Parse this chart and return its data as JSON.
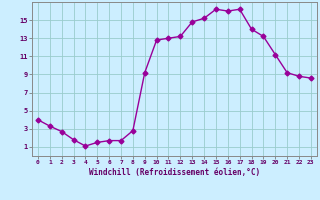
{
  "x": [
    0,
    1,
    2,
    3,
    4,
    5,
    6,
    7,
    8,
    9,
    10,
    11,
    12,
    13,
    14,
    15,
    16,
    17,
    18,
    19,
    20,
    21,
    22,
    23
  ],
  "y": [
    4.0,
    3.3,
    2.7,
    1.8,
    1.1,
    1.5,
    1.7,
    1.7,
    2.8,
    9.2,
    12.8,
    13.0,
    13.2,
    14.8,
    15.2,
    16.2,
    16.0,
    16.2,
    14.0,
    13.2,
    11.2,
    9.2,
    8.8,
    8.6
  ],
  "line_color": "#990099",
  "marker": "D",
  "markersize": 2.5,
  "linewidth": 1.0,
  "bg_color": "#cceeff",
  "grid_color": "#99cccc",
  "xlabel": "Windchill (Refroidissement éolien,°C)",
  "xlabel_color": "#660066",
  "tick_color": "#660066",
  "xlim": [
    -0.5,
    23.5
  ],
  "ylim": [
    0,
    17
  ],
  "yticks": [
    1,
    3,
    5,
    7,
    9,
    11,
    13,
    15
  ],
  "xticks": [
    0,
    1,
    2,
    3,
    4,
    5,
    6,
    7,
    8,
    9,
    10,
    11,
    12,
    13,
    14,
    15,
    16,
    17,
    18,
    19,
    20,
    21,
    22,
    23
  ]
}
